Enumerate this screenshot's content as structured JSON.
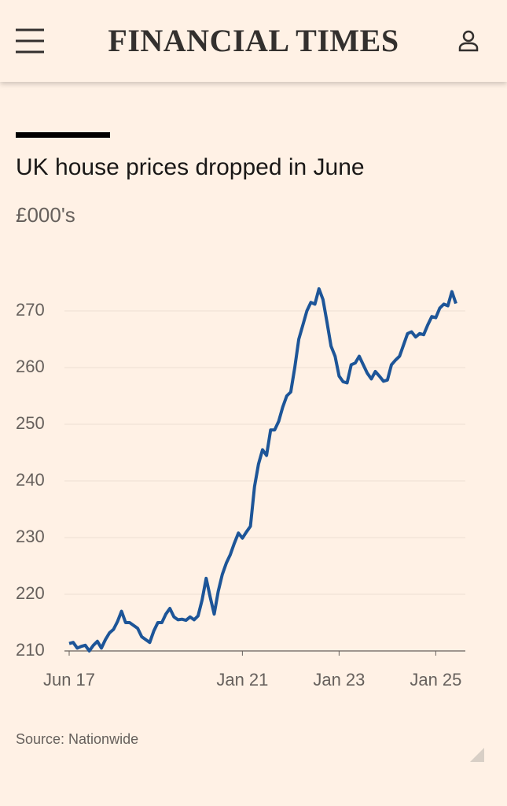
{
  "header": {
    "brand": "FINANCIAL TIMES"
  },
  "chart_data": {
    "type": "line",
    "title": "UK house prices dropped in June",
    "subtitle": "£000's",
    "source": "Source: Nationwide",
    "x": [
      "2017-06",
      "2017-07",
      "2017-08",
      "2017-09",
      "2017-10",
      "2017-11",
      "2017-12",
      "2018-01",
      "2018-02",
      "2018-03",
      "2018-04",
      "2018-05",
      "2018-06",
      "2018-07",
      "2018-08",
      "2018-09",
      "2018-10",
      "2018-11",
      "2018-12",
      "2019-01",
      "2019-02",
      "2019-03",
      "2019-04",
      "2019-05",
      "2019-06",
      "2019-07",
      "2019-08",
      "2019-09",
      "2019-10",
      "2019-11",
      "2019-12",
      "2020-01",
      "2020-02",
      "2020-03",
      "2020-04",
      "2020-05",
      "2020-06",
      "2020-07",
      "2020-08",
      "2020-09",
      "2020-10",
      "2020-11",
      "2020-12",
      "2021-01",
      "2021-02",
      "2021-03",
      "2021-04",
      "2021-05",
      "2021-06",
      "2021-07",
      "2021-08",
      "2021-09",
      "2021-10",
      "2021-11",
      "2021-12",
      "2022-01",
      "2022-02",
      "2022-03",
      "2022-04",
      "2022-05",
      "2022-06",
      "2022-07",
      "2022-08",
      "2022-09",
      "2022-10",
      "2022-11",
      "2022-12",
      "2023-01",
      "2023-02",
      "2023-03",
      "2023-04",
      "2023-05",
      "2023-06",
      "2023-07",
      "2023-08",
      "2023-09",
      "2023-10",
      "2023-11",
      "2023-12",
      "2024-01",
      "2024-02",
      "2024-03",
      "2024-04",
      "2024-05",
      "2024-06",
      "2024-07",
      "2024-08",
      "2024-09",
      "2024-10",
      "2024-11",
      "2024-12",
      "2025-01",
      "2025-02",
      "2025-03",
      "2025-04",
      "2025-05",
      "2025-06"
    ],
    "series": [
      {
        "name": "UK house prices",
        "color": "#1d5598",
        "values": [
          211.3,
          211.5,
          210.5,
          210.8,
          211,
          210,
          211,
          211.7,
          210.5,
          212,
          213.2,
          213.8,
          215.2,
          217,
          215,
          215,
          214.5,
          214,
          212.5,
          212,
          211.5,
          213.5,
          215,
          215,
          216.5,
          217.5,
          216,
          215.5,
          215.6,
          215.4,
          216,
          215.5,
          216.2,
          219,
          222.8,
          219.5,
          216.5,
          220.5,
          223.5,
          225.5,
          227,
          229,
          230.8,
          229.9,
          231,
          232,
          239,
          243,
          245.5,
          244.5,
          249,
          249,
          250.5,
          253,
          255,
          255.7,
          260,
          265,
          267.5,
          270,
          271.5,
          271.2,
          273.9,
          272,
          268,
          263.8,
          262,
          258.5,
          257.5,
          257.3,
          260.5,
          260.8,
          262,
          260.5,
          259,
          258,
          259.3,
          258.5,
          257.6,
          257.8,
          260.5,
          261.3,
          262,
          264,
          266,
          266.3,
          265.4,
          266,
          265.8,
          267.5,
          269,
          268.8,
          270.5,
          271.2,
          270.9,
          273.4,
          271.3
        ]
      }
    ],
    "xlim": [
      "2017-06",
      "2025-06"
    ],
    "xticks": [
      {
        "value": "2017-06",
        "label": "Jun 17"
      },
      {
        "value": "2021-01",
        "label": "Jan 21"
      },
      {
        "value": "2023-01",
        "label": "Jan 23"
      },
      {
        "value": "2025-01",
        "label": "Jan 25"
      }
    ],
    "ylim": [
      210,
      275
    ],
    "yticks": [
      210,
      220,
      230,
      240,
      250,
      260,
      270
    ],
    "grid": true
  }
}
